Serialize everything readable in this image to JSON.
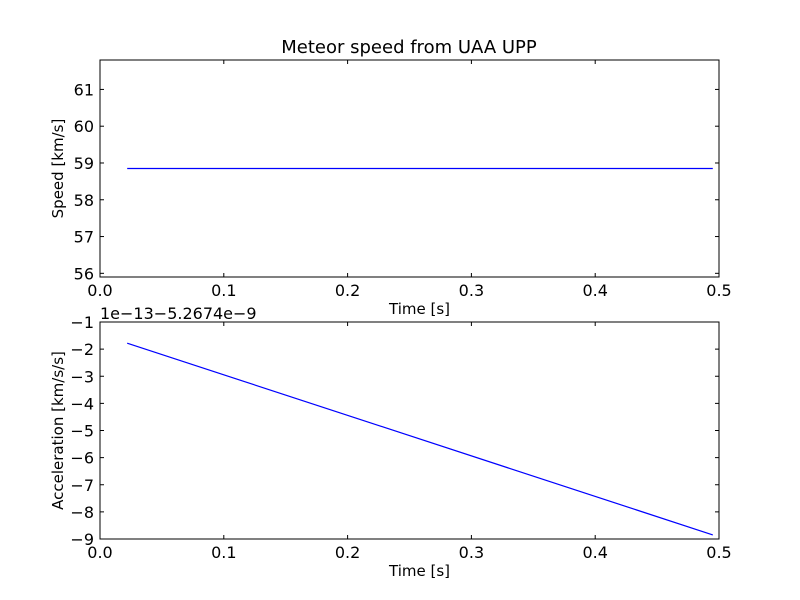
{
  "figure": {
    "title": "Meteor speed from  UAA UPP"
  },
  "chart_data": [
    {
      "type": "line",
      "title": "Meteor speed from  UAA UPP",
      "xlabel": "Time [s]",
      "ylabel": "Speed [km/s]",
      "xlim": [
        0.0,
        0.5
      ],
      "ylim": [
        55.9,
        61.8
      ],
      "xticks": [
        0.0,
        0.1,
        0.2,
        0.3,
        0.4,
        0.5
      ],
      "xtick_labels": [
        "0.0",
        "0.1",
        "0.2",
        "0.3",
        "0.4",
        "0.5"
      ],
      "yticks": [
        56,
        57,
        58,
        59,
        60,
        61
      ],
      "ytick_labels": [
        "56",
        "57",
        "58",
        "59",
        "60",
        "61"
      ],
      "grid": false,
      "series": [
        {
          "color": "#0000ff",
          "x": [
            0.022,
            0.495
          ],
          "y": [
            58.85,
            58.85
          ]
        }
      ]
    },
    {
      "type": "line",
      "xlabel": "Time [s]",
      "ylabel": "Acceleration [km/s/s]",
      "offset_text": "1e−13−5.2674e−9",
      "xlim": [
        0.0,
        0.5
      ],
      "ylim": [
        -9,
        -1
      ],
      "xticks": [
        0.0,
        0.1,
        0.2,
        0.3,
        0.4,
        0.5
      ],
      "xtick_labels": [
        "0.0",
        "0.1",
        "0.2",
        "0.3",
        "0.4",
        "0.5"
      ],
      "yticks": [
        -9,
        -8,
        -7,
        -6,
        -5,
        -4,
        -3,
        -2,
        -1
      ],
      "ytick_labels": [
        "−9",
        "−8",
        "−7",
        "−6",
        "−5",
        "−4",
        "−3",
        "−2",
        "−1"
      ],
      "grid": false,
      "series": [
        {
          "color": "#0000ff",
          "x": [
            0.022,
            0.495
          ],
          "y": [
            -1.78,
            -8.85
          ]
        }
      ]
    }
  ]
}
